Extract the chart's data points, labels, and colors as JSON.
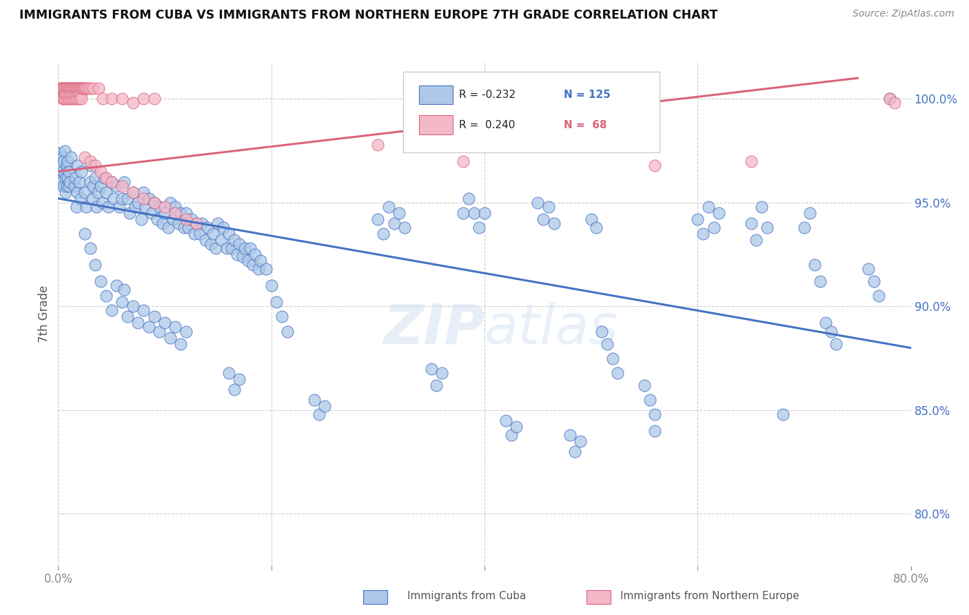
{
  "title": "IMMIGRANTS FROM CUBA VS IMMIGRANTS FROM NORTHERN EUROPE 7TH GRADE CORRELATION CHART",
  "source": "Source: ZipAtlas.com",
  "ylabel": "7th Grade",
  "right_yticks": [
    "100.0%",
    "95.0%",
    "90.0%",
    "85.0%",
    "80.0%"
  ],
  "right_ytick_vals": [
    1.0,
    0.95,
    0.9,
    0.85,
    0.8
  ],
  "legend_blue_label": "Immigrants from Cuba",
  "legend_pink_label": "Immigrants from Northern Europe",
  "blue_color": "#adc8e8",
  "blue_line_color": "#4472c4",
  "pink_color": "#f5b8c8",
  "pink_line_color": "#d9647a",
  "watermark": "ZIPatlas",
  "xlim": [
    0.0,
    0.8
  ],
  "ylim": [
    0.775,
    1.018
  ],
  "blue_regression": [
    -0.09,
    0.952
  ],
  "pink_regression": [
    0.06,
    0.965
  ],
  "blue_scatter": [
    [
      0.002,
      0.974
    ],
    [
      0.003,
      0.968
    ],
    [
      0.003,
      0.96
    ],
    [
      0.004,
      0.972
    ],
    [
      0.004,
      0.965
    ],
    [
      0.005,
      0.958
    ],
    [
      0.005,
      0.97
    ],
    [
      0.006,
      0.964
    ],
    [
      0.006,
      0.975
    ],
    [
      0.007,
      0.962
    ],
    [
      0.007,
      0.955
    ],
    [
      0.008,
      0.968
    ],
    [
      0.008,
      0.958
    ],
    [
      0.009,
      0.962
    ],
    [
      0.009,
      0.97
    ],
    [
      0.01,
      0.965
    ],
    [
      0.01,
      0.958
    ],
    [
      0.011,
      0.96
    ],
    [
      0.012,
      0.972
    ],
    [
      0.015,
      0.958
    ],
    [
      0.016,
      0.962
    ],
    [
      0.017,
      0.948
    ],
    [
      0.018,
      0.955
    ],
    [
      0.018,
      0.968
    ],
    [
      0.02,
      0.96
    ],
    [
      0.021,
      0.952
    ],
    [
      0.022,
      0.965
    ],
    [
      0.025,
      0.955
    ],
    [
      0.026,
      0.948
    ],
    [
      0.03,
      0.96
    ],
    [
      0.031,
      0.968
    ],
    [
      0.032,
      0.952
    ],
    [
      0.033,
      0.958
    ],
    [
      0.035,
      0.962
    ],
    [
      0.036,
      0.948
    ],
    [
      0.037,
      0.955
    ],
    [
      0.04,
      0.958
    ],
    [
      0.042,
      0.95
    ],
    [
      0.043,
      0.962
    ],
    [
      0.045,
      0.955
    ],
    [
      0.047,
      0.948
    ],
    [
      0.05,
      0.96
    ],
    [
      0.052,
      0.952
    ],
    [
      0.055,
      0.958
    ],
    [
      0.057,
      0.948
    ],
    [
      0.06,
      0.952
    ],
    [
      0.062,
      0.96
    ],
    [
      0.065,
      0.952
    ],
    [
      0.067,
      0.945
    ],
    [
      0.07,
      0.955
    ],
    [
      0.072,
      0.948
    ],
    [
      0.075,
      0.95
    ],
    [
      0.078,
      0.942
    ],
    [
      0.08,
      0.955
    ],
    [
      0.082,
      0.948
    ],
    [
      0.085,
      0.952
    ],
    [
      0.088,
      0.945
    ],
    [
      0.09,
      0.95
    ],
    [
      0.093,
      0.942
    ],
    [
      0.095,
      0.948
    ],
    [
      0.098,
      0.94
    ],
    [
      0.1,
      0.945
    ],
    [
      0.103,
      0.938
    ],
    [
      0.105,
      0.95
    ],
    [
      0.108,
      0.942
    ],
    [
      0.11,
      0.948
    ],
    [
      0.113,
      0.94
    ],
    [
      0.115,
      0.945
    ],
    [
      0.118,
      0.938
    ],
    [
      0.12,
      0.945
    ],
    [
      0.122,
      0.938
    ],
    [
      0.125,
      0.942
    ],
    [
      0.128,
      0.935
    ],
    [
      0.13,
      0.94
    ],
    [
      0.133,
      0.935
    ],
    [
      0.135,
      0.94
    ],
    [
      0.138,
      0.932
    ],
    [
      0.14,
      0.938
    ],
    [
      0.143,
      0.93
    ],
    [
      0.145,
      0.935
    ],
    [
      0.148,
      0.928
    ],
    [
      0.15,
      0.94
    ],
    [
      0.153,
      0.932
    ],
    [
      0.155,
      0.938
    ],
    [
      0.158,
      0.928
    ],
    [
      0.16,
      0.935
    ],
    [
      0.163,
      0.928
    ],
    [
      0.165,
      0.932
    ],
    [
      0.168,
      0.925
    ],
    [
      0.17,
      0.93
    ],
    [
      0.173,
      0.924
    ],
    [
      0.175,
      0.928
    ],
    [
      0.178,
      0.922
    ],
    [
      0.18,
      0.928
    ],
    [
      0.183,
      0.92
    ],
    [
      0.185,
      0.925
    ],
    [
      0.188,
      0.918
    ],
    [
      0.19,
      0.922
    ],
    [
      0.195,
      0.918
    ],
    [
      0.055,
      0.91
    ],
    [
      0.06,
      0.902
    ],
    [
      0.062,
      0.908
    ],
    [
      0.065,
      0.895
    ],
    [
      0.07,
      0.9
    ],
    [
      0.075,
      0.892
    ],
    [
      0.08,
      0.898
    ],
    [
      0.085,
      0.89
    ],
    [
      0.09,
      0.895
    ],
    [
      0.095,
      0.888
    ],
    [
      0.1,
      0.892
    ],
    [
      0.105,
      0.885
    ],
    [
      0.11,
      0.89
    ],
    [
      0.115,
      0.882
    ],
    [
      0.12,
      0.888
    ],
    [
      0.025,
      0.935
    ],
    [
      0.03,
      0.928
    ],
    [
      0.035,
      0.92
    ],
    [
      0.04,
      0.912
    ],
    [
      0.045,
      0.905
    ],
    [
      0.05,
      0.898
    ],
    [
      0.2,
      0.91
    ],
    [
      0.205,
      0.902
    ],
    [
      0.21,
      0.895
    ],
    [
      0.215,
      0.888
    ],
    [
      0.3,
      0.942
    ],
    [
      0.305,
      0.935
    ],
    [
      0.31,
      0.948
    ],
    [
      0.315,
      0.94
    ],
    [
      0.32,
      0.945
    ],
    [
      0.325,
      0.938
    ],
    [
      0.38,
      0.945
    ],
    [
      0.385,
      0.952
    ],
    [
      0.39,
      0.945
    ],
    [
      0.395,
      0.938
    ],
    [
      0.4,
      0.945
    ],
    [
      0.45,
      0.95
    ],
    [
      0.455,
      0.942
    ],
    [
      0.46,
      0.948
    ],
    [
      0.465,
      0.94
    ],
    [
      0.5,
      0.942
    ],
    [
      0.505,
      0.938
    ],
    [
      0.51,
      0.888
    ],
    [
      0.515,
      0.882
    ],
    [
      0.52,
      0.875
    ],
    [
      0.525,
      0.868
    ],
    [
      0.55,
      0.862
    ],
    [
      0.555,
      0.855
    ],
    [
      0.56,
      0.848
    ],
    [
      0.6,
      0.942
    ],
    [
      0.605,
      0.935
    ],
    [
      0.61,
      0.948
    ],
    [
      0.615,
      0.938
    ],
    [
      0.62,
      0.945
    ],
    [
      0.65,
      0.94
    ],
    [
      0.655,
      0.932
    ],
    [
      0.66,
      0.948
    ],
    [
      0.665,
      0.938
    ],
    [
      0.7,
      0.938
    ],
    [
      0.705,
      0.945
    ],
    [
      0.71,
      0.92
    ],
    [
      0.715,
      0.912
    ],
    [
      0.76,
      0.918
    ],
    [
      0.765,
      0.912
    ],
    [
      0.77,
      0.905
    ],
    [
      0.35,
      0.87
    ],
    [
      0.355,
      0.862
    ],
    [
      0.36,
      0.868
    ],
    [
      0.16,
      0.868
    ],
    [
      0.165,
      0.86
    ],
    [
      0.17,
      0.865
    ],
    [
      0.24,
      0.855
    ],
    [
      0.245,
      0.848
    ],
    [
      0.25,
      0.852
    ],
    [
      0.42,
      0.845
    ],
    [
      0.425,
      0.838
    ],
    [
      0.43,
      0.842
    ],
    [
      0.48,
      0.838
    ],
    [
      0.485,
      0.83
    ],
    [
      0.49,
      0.835
    ],
    [
      0.78,
      1.0
    ],
    [
      0.56,
      0.84
    ],
    [
      0.68,
      0.848
    ],
    [
      0.72,
      0.892
    ],
    [
      0.725,
      0.888
    ],
    [
      0.73,
      0.882
    ]
  ],
  "pink_scatter": [
    [
      0.002,
      1.005
    ],
    [
      0.003,
      1.005
    ],
    [
      0.004,
      1.005
    ],
    [
      0.004,
      1.0
    ],
    [
      0.005,
      1.005
    ],
    [
      0.005,
      1.0
    ],
    [
      0.006,
      1.005
    ],
    [
      0.006,
      1.0
    ],
    [
      0.007,
      1.005
    ],
    [
      0.007,
      1.002
    ],
    [
      0.008,
      1.005
    ],
    [
      0.008,
      1.0
    ],
    [
      0.009,
      1.005
    ],
    [
      0.009,
      1.002
    ],
    [
      0.01,
      1.005
    ],
    [
      0.01,
      1.0
    ],
    [
      0.011,
      1.005
    ],
    [
      0.011,
      1.002
    ],
    [
      0.012,
      1.005
    ],
    [
      0.012,
      1.0
    ],
    [
      0.013,
      1.005
    ],
    [
      0.013,
      1.002
    ],
    [
      0.014,
      1.005
    ],
    [
      0.014,
      1.0
    ],
    [
      0.015,
      1.005
    ],
    [
      0.015,
      1.002
    ],
    [
      0.016,
      1.005
    ],
    [
      0.016,
      1.0
    ],
    [
      0.017,
      1.005
    ],
    [
      0.017,
      1.002
    ],
    [
      0.018,
      1.005
    ],
    [
      0.018,
      1.0
    ],
    [
      0.019,
      1.005
    ],
    [
      0.019,
      1.002
    ],
    [
      0.02,
      1.005
    ],
    [
      0.02,
      1.0
    ],
    [
      0.021,
      1.005
    ],
    [
      0.021,
      1.002
    ],
    [
      0.022,
      1.005
    ],
    [
      0.022,
      1.0
    ],
    [
      0.023,
      1.005
    ],
    [
      0.024,
      1.005
    ],
    [
      0.025,
      1.005
    ],
    [
      0.026,
      1.005
    ],
    [
      0.028,
      1.005
    ],
    [
      0.03,
      1.005
    ],
    [
      0.033,
      1.005
    ],
    [
      0.038,
      1.005
    ],
    [
      0.042,
      1.0
    ],
    [
      0.05,
      1.0
    ],
    [
      0.06,
      1.0
    ],
    [
      0.07,
      0.998
    ],
    [
      0.08,
      1.0
    ],
    [
      0.09,
      1.0
    ],
    [
      0.025,
      0.972
    ],
    [
      0.03,
      0.97
    ],
    [
      0.035,
      0.968
    ],
    [
      0.04,
      0.965
    ],
    [
      0.045,
      0.962
    ],
    [
      0.05,
      0.96
    ],
    [
      0.06,
      0.958
    ],
    [
      0.07,
      0.955
    ],
    [
      0.08,
      0.952
    ],
    [
      0.09,
      0.95
    ],
    [
      0.1,
      0.948
    ],
    [
      0.11,
      0.945
    ],
    [
      0.12,
      0.942
    ],
    [
      0.13,
      0.94
    ],
    [
      0.3,
      0.978
    ],
    [
      0.56,
      0.968
    ],
    [
      0.38,
      0.97
    ],
    [
      0.65,
      0.97
    ],
    [
      0.78,
      1.0
    ],
    [
      0.785,
      0.998
    ]
  ]
}
